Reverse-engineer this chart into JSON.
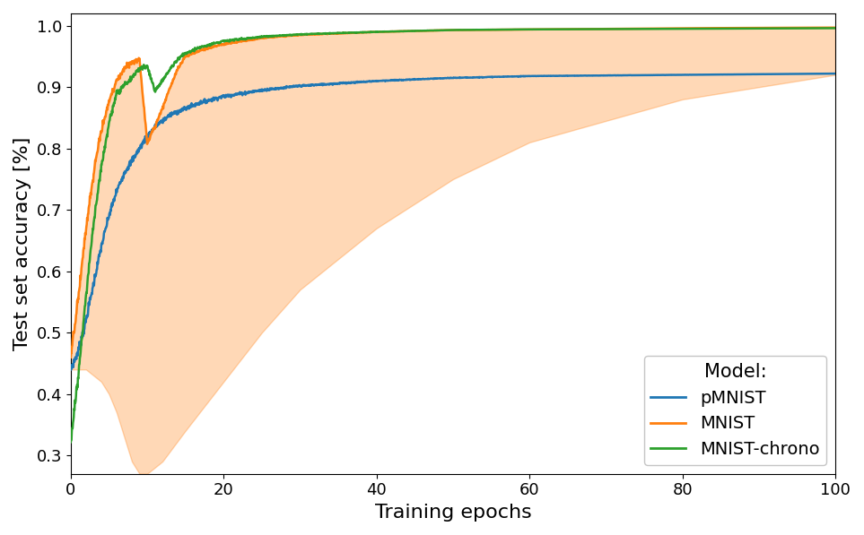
{
  "title": "",
  "xlabel": "Training epochs",
  "ylabel": "Test set accuracy [%]",
  "xlim": [
    0,
    100
  ],
  "ylim": [
    0.27,
    1.02
  ],
  "yticks": [
    0.3,
    0.4,
    0.5,
    0.6,
    0.7,
    0.8,
    0.9,
    1.0
  ],
  "xticks": [
    0,
    20,
    40,
    60,
    80,
    100
  ],
  "colors": {
    "pMNIST": "#1f77b4",
    "MNIST": "#ff7f0e",
    "MNIST_chrono": "#2ca02c"
  },
  "fill_color": "#ff7f0e",
  "fill_alpha": 0.3,
  "legend_title": "Model:",
  "legend_labels": [
    "pMNIST",
    "MNIST",
    "MNIST-chrono"
  ],
  "figsize": [
    9.63,
    5.97
  ],
  "dpi": 100,
  "pmnist_x": [
    0,
    1,
    2,
    3,
    4,
    5,
    6,
    7,
    8,
    9,
    10,
    11,
    12,
    13,
    14,
    15,
    17,
    20,
    25,
    30,
    40,
    50,
    60,
    80,
    100
  ],
  "pmnist_y": [
    0.44,
    0.47,
    0.52,
    0.58,
    0.64,
    0.69,
    0.73,
    0.76,
    0.78,
    0.8,
    0.82,
    0.835,
    0.845,
    0.855,
    0.86,
    0.865,
    0.875,
    0.885,
    0.895,
    0.902,
    0.91,
    0.915,
    0.918,
    0.92,
    0.922
  ],
  "mnist_x": [
    0,
    1,
    2,
    3,
    4,
    5,
    6,
    7,
    8,
    9,
    10,
    11,
    12,
    13,
    14,
    15,
    17,
    20,
    25,
    30,
    40,
    50,
    60,
    80,
    100
  ],
  "mnist_y": [
    0.46,
    0.56,
    0.67,
    0.76,
    0.83,
    0.875,
    0.91,
    0.93,
    0.94,
    0.945,
    0.81,
    0.835,
    0.865,
    0.9,
    0.93,
    0.95,
    0.96,
    0.97,
    0.98,
    0.985,
    0.99,
    0.993,
    0.994,
    0.996,
    0.997
  ],
  "chrono_x": [
    0,
    1,
    2,
    3,
    4,
    5,
    6,
    7,
    8,
    9,
    10,
    11,
    12,
    13,
    14,
    15,
    17,
    20,
    25,
    30,
    40,
    50,
    60,
    80,
    100
  ],
  "chrono_y": [
    0.32,
    0.43,
    0.56,
    0.68,
    0.77,
    0.84,
    0.89,
    0.905,
    0.915,
    0.93,
    0.935,
    0.895,
    0.91,
    0.93,
    0.945,
    0.955,
    0.965,
    0.975,
    0.982,
    0.986,
    0.99,
    0.993,
    0.994,
    0.995,
    0.996
  ],
  "fill_lower_x": [
    0,
    1,
    2,
    3,
    4,
    5,
    6,
    7,
    8,
    9,
    10,
    12,
    15,
    20,
    25,
    30,
    40,
    50,
    60,
    80,
    100
  ],
  "fill_lower_y": [
    0.44,
    0.44,
    0.44,
    0.43,
    0.42,
    0.4,
    0.37,
    0.33,
    0.29,
    0.27,
    0.27,
    0.29,
    0.34,
    0.42,
    0.5,
    0.57,
    0.67,
    0.75,
    0.81,
    0.88,
    0.92
  ],
  "fill_upper_x": [
    0,
    1,
    2,
    3,
    4,
    5,
    6,
    7,
    8,
    9,
    10,
    11,
    12,
    13,
    14,
    15,
    17,
    20,
    25,
    30,
    40,
    50,
    60,
    80,
    100
  ],
  "fill_upper_y": [
    0.46,
    0.56,
    0.67,
    0.76,
    0.83,
    0.875,
    0.91,
    0.93,
    0.94,
    0.945,
    0.81,
    0.835,
    0.865,
    0.9,
    0.93,
    0.95,
    0.96,
    0.97,
    0.98,
    0.985,
    0.99,
    0.993,
    0.994,
    0.996,
    0.997
  ]
}
